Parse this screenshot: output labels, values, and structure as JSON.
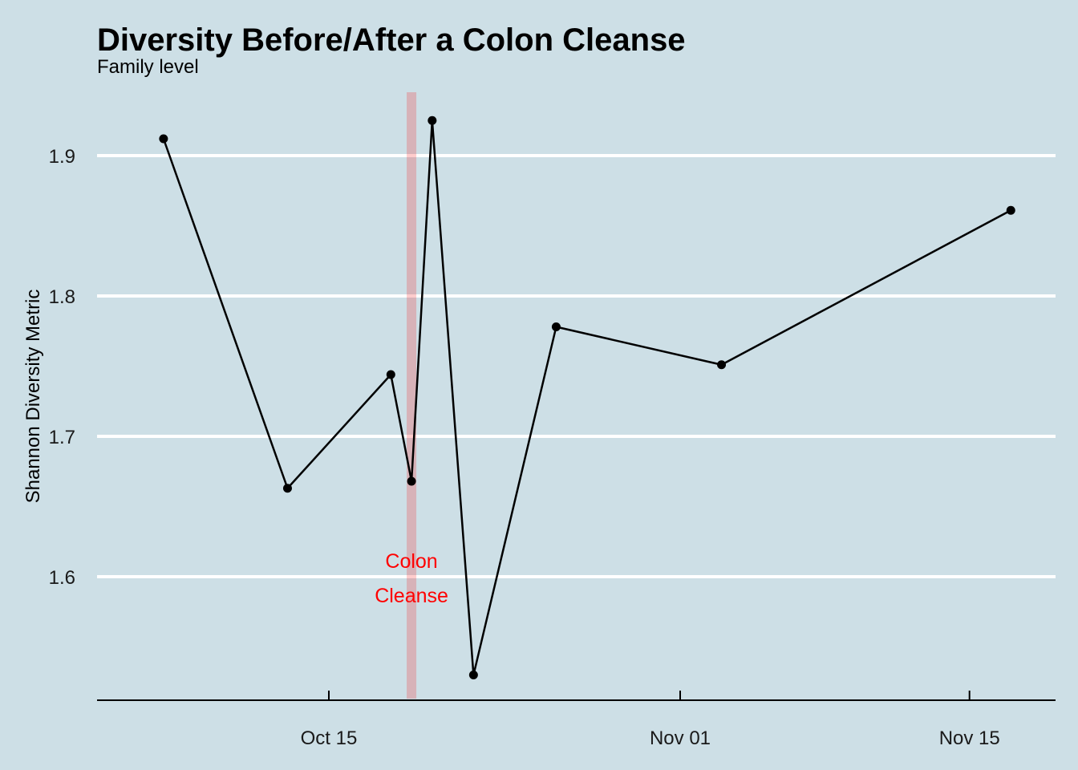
{
  "chart_data": {
    "type": "line",
    "title": "Diversity Before/After a Colon Cleanse",
    "subtitle": "Family level",
    "xlabel": "",
    "ylabel": "Shannon Diversity Metric",
    "x_ticks": [
      "Oct 15",
      "Nov 01",
      "Nov 15"
    ],
    "y_ticks": [
      1.6,
      1.7,
      1.8,
      1.9
    ],
    "grid": "horizontal major",
    "series": [
      {
        "x": [
          "2017-10-07",
          "2017-10-13",
          "2017-10-18",
          "2017-10-19",
          "2017-10-20",
          "2017-10-22",
          "2017-10-26",
          "2017-11-03",
          "2017-11-17"
        ],
        "y": [
          1.912,
          1.663,
          1.744,
          1.668,
          1.925,
          1.53,
          1.778,
          1.751,
          1.861
        ]
      }
    ],
    "annotations": [
      {
        "x": "2017-10-19",
        "type": "vertical-band",
        "label": [
          "Colon",
          "Cleanse"
        ],
        "color": "#ff0000"
      }
    ]
  }
}
